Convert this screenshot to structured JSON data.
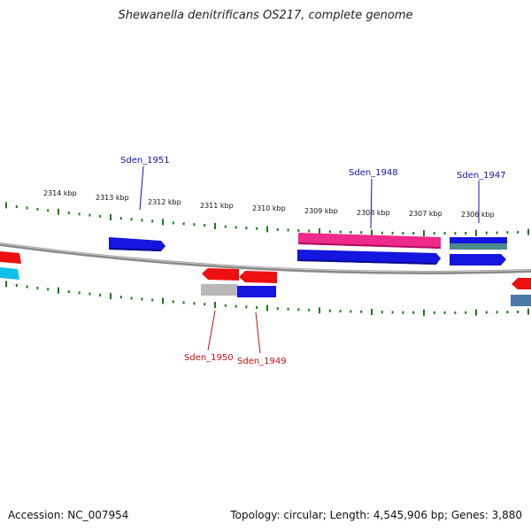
{
  "title": "Shewanella denitrificans OS217, complete genome",
  "footer": {
    "accession": "Accession: NC_007954",
    "summary": "Topology: circular; Length: 4,545,906 bp; Genes: 3,880"
  },
  "ruler": {
    "unit": "kbp",
    "labels": [
      "2314 kbp",
      "2313 kbp",
      "2312 kbp",
      "2311 kbp",
      "2310 kbp",
      "2309 kbp",
      "2308 kbp",
      "2307 kbp",
      "2306 kbp"
    ],
    "tick_color": "#1a7a1a"
  },
  "colors": {
    "backbone": "#8a8a8a",
    "forward_label": "#1010b0",
    "reverse_label": "#c01010",
    "blue": "#1515e0",
    "red": "#ee1010",
    "pink": "#ee2a8a",
    "gray": "#b8b8b8",
    "teal": "#4a8a8a",
    "cyan": "#10c0e8",
    "steel": "#4a78a8"
  },
  "genes": {
    "forward": [
      {
        "name": "Sden_1951"
      },
      {
        "name": "Sden_1948"
      },
      {
        "name": "Sden_1947"
      }
    ],
    "reverse": [
      {
        "name": "Sden_1950"
      },
      {
        "name": "Sden_1949"
      }
    ]
  }
}
